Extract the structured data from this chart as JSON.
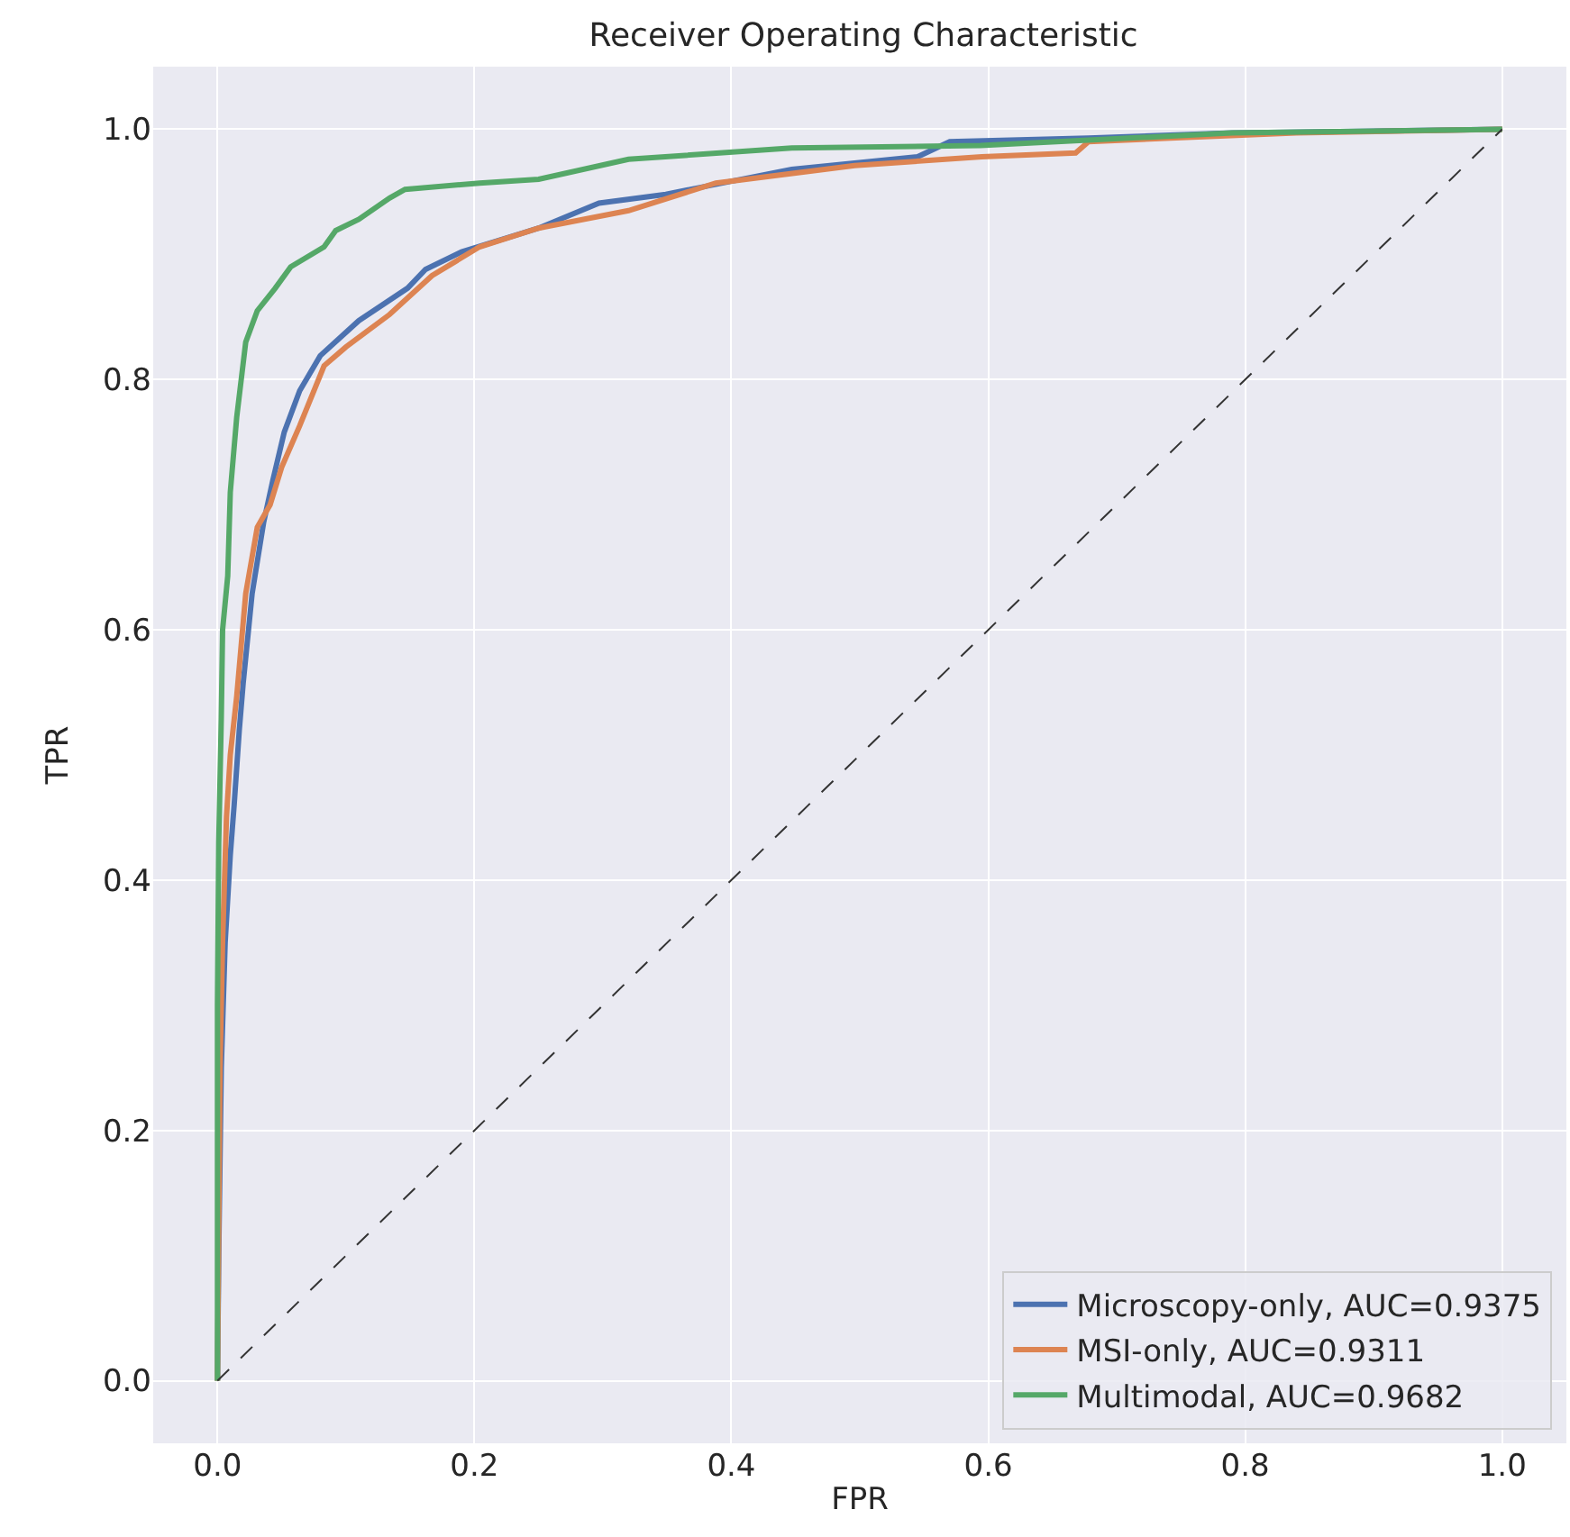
{
  "chart_data": {
    "type": "line",
    "title": "Receiver Operating Characteristic",
    "xlabel": "FPR",
    "ylabel": "TPR",
    "xlim": [
      -0.05,
      1.05
    ],
    "ylim": [
      -0.05,
      1.05
    ],
    "xticks": [
      {
        "value": 0,
        "label": "0.0"
      },
      {
        "value": 0.2,
        "label": "0.2"
      },
      {
        "value": 0.4,
        "label": "0.4"
      },
      {
        "value": 0.6,
        "label": "0.6"
      },
      {
        "value": 0.8,
        "label": "0.8"
      },
      {
        "value": 1,
        "label": "1.0"
      }
    ],
    "yticks": [
      {
        "value": 0,
        "label": "0.0"
      },
      {
        "value": 0.2,
        "label": "0.2"
      },
      {
        "value": 0.4,
        "label": "0.4"
      },
      {
        "value": 0.6,
        "label": "0.6"
      },
      {
        "value": 0.8,
        "label": "0.8"
      },
      {
        "value": 1,
        "label": "1.0"
      }
    ],
    "grid": true,
    "legend": "bottom right",
    "marker": "none",
    "series": [
      {
        "name": "Microscopy-only, AUC=0.9375",
        "color": "#4c72b0",
        "x": [
          0,
          0.001,
          0.003,
          0.006,
          0.01,
          0.013,
          0.017,
          0.02,
          0.027,
          0.036,
          0.043,
          0.052,
          0.064,
          0.08,
          0.11,
          0.148,
          0.162,
          0.19,
          0.25,
          0.297,
          0.349,
          0.447,
          0.545,
          0.57,
          0.678,
          0.79,
          1
        ],
        "values": [
          0,
          0.1,
          0.25,
          0.35,
          0.42,
          0.46,
          0.52,
          0.557,
          0.629,
          0.686,
          0.719,
          0.758,
          0.791,
          0.819,
          0.847,
          0.873,
          0.888,
          0.902,
          0.921,
          0.941,
          0.948,
          0.968,
          0.978,
          0.99,
          0.993,
          0.997,
          1
        ]
      },
      {
        "name": "MSI-only, AUC=0.9311",
        "color": "#dd8452",
        "x": [
          0,
          0.001,
          0.002,
          0.004,
          0.007,
          0.01,
          0.015,
          0.022,
          0.031,
          0.041,
          0.05,
          0.064,
          0.083,
          0.1,
          0.134,
          0.167,
          0.204,
          0.25,
          0.32,
          0.388,
          0.496,
          0.595,
          0.668,
          0.678,
          0.742,
          0.84,
          1
        ],
        "values": [
          0,
          0.12,
          0.25,
          0.35,
          0.45,
          0.5,
          0.547,
          0.629,
          0.682,
          0.7,
          0.73,
          0.763,
          0.811,
          0.826,
          0.852,
          0.883,
          0.906,
          0.921,
          0.935,
          0.957,
          0.971,
          0.978,
          0.981,
          0.99,
          0.993,
          0.997,
          1
        ]
      },
      {
        "name": "Multimodal, AUC=0.9682",
        "color": "#55a868",
        "x": [
          0,
          0,
          0.001,
          0.003,
          0.004,
          0.008,
          0.01,
          0.015,
          0.022,
          0.031,
          0.045,
          0.057,
          0.083,
          0.092,
          0.11,
          0.134,
          0.146,
          0.204,
          0.25,
          0.32,
          0.447,
          0.594,
          0.79,
          1
        ],
        "values": [
          0,
          0.3,
          0.43,
          0.53,
          0.6,
          0.643,
          0.71,
          0.77,
          0.83,
          0.855,
          0.873,
          0.89,
          0.906,
          0.919,
          0.928,
          0.945,
          0.952,
          0.957,
          0.96,
          0.976,
          0.985,
          0.987,
          0.997,
          1
        ]
      },
      {
        "color": "#333333",
        "line_style": "dashed",
        "x": [
          0,
          1
        ],
        "values": [
          0,
          1
        ]
      }
    ]
  }
}
